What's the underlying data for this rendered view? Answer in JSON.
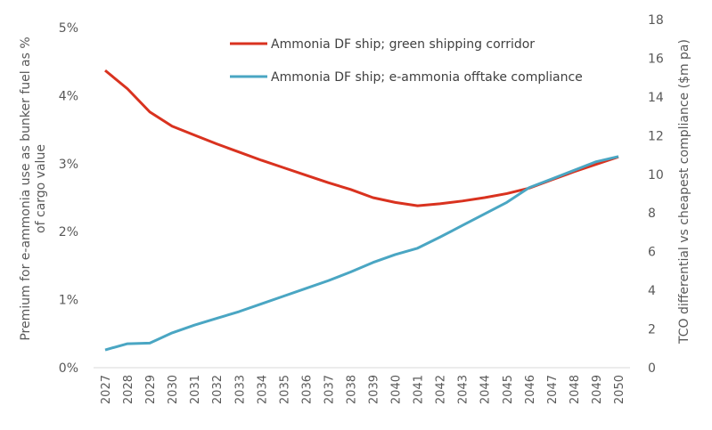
{
  "chart_data": {
    "type": "line",
    "x": [
      2027,
      2028,
      2029,
      2030,
      2031,
      2032,
      2033,
      2034,
      2035,
      2036,
      2037,
      2038,
      2039,
      2040,
      2041,
      2042,
      2043,
      2044,
      2045,
      2046,
      2047,
      2048,
      2049,
      2050
    ],
    "ylabel_left": "Premium for e-ammonia use as bunker fuel as % of cargo value",
    "ylabel_left_lines": [
      "Premium for e-ammonia use as bunker fuel as %",
      "of cargo value"
    ],
    "ylabel_right": "TCO differential vs cheapest compliance ($m pa)",
    "ylim_left": [
      0,
      5
    ],
    "yticks_left": [
      "0%",
      "1%",
      "2%",
      "3%",
      "4%",
      "5%"
    ],
    "ylim_right": [
      0,
      18
    ],
    "yticks_right": [
      "0",
      "2",
      "4",
      "6",
      "8",
      "10",
      "12",
      "14",
      "16",
      "18"
    ],
    "grid": false,
    "legend_position": "top-center",
    "series": [
      {
        "name": "Ammonia DF ship; green shipping corridor",
        "axis": "left",
        "unit": "%",
        "color": "#d9321f",
        "values": [
          4.37,
          4.1,
          3.76,
          3.55,
          3.42,
          3.29,
          3.17,
          3.05,
          2.94,
          2.83,
          2.72,
          2.62,
          2.5,
          2.43,
          2.38,
          2.41,
          2.45,
          2.5,
          2.56,
          2.64,
          2.76,
          2.88,
          2.99,
          3.1
        ]
      },
      {
        "name": "Ammonia DF ship; e-ammonia offtake compliance",
        "axis": "right",
        "unit": "$m pa",
        "color": "#4aa6c3",
        "values": [
          0.92,
          1.24,
          1.27,
          1.8,
          2.2,
          2.55,
          2.9,
          3.3,
          3.7,
          4.1,
          4.5,
          4.95,
          5.44,
          5.85,
          6.18,
          6.75,
          7.35,
          7.95,
          8.55,
          9.31,
          9.75,
          10.2,
          10.65,
          10.92
        ]
      }
    ]
  }
}
